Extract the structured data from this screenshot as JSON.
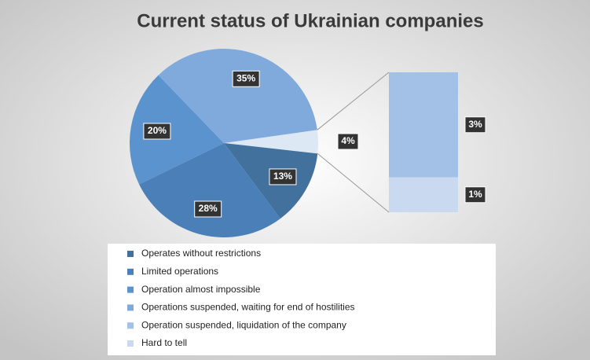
{
  "chart_data": {
    "type": "pie_of_bar",
    "title": "Current status of Ukrainian companies",
    "slices": [
      {
        "name": "Operates without restrictions",
        "value": 13,
        "label": "13%",
        "color": "#41719c"
      },
      {
        "name": "Limited operations",
        "value": 28,
        "label": "28%",
        "color": "#4a7fb8"
      },
      {
        "name": "Operation almost impossible",
        "value": 20,
        "label": "20%",
        "color": "#5b93cf"
      },
      {
        "name": "Operations suspended, waiting for end of hostilities",
        "value": 35,
        "label": "35%",
        "color": "#80a9dc"
      }
    ],
    "bar_slices": [
      {
        "name": "Operation suspended, liquidation of the company",
        "value": 3,
        "label": "3%",
        "color": "#a3c0e6"
      },
      {
        "name": "Hard to tell",
        "value": 1,
        "label": "1%",
        "color": "#c9daf0"
      }
    ],
    "other": {
      "value": 4,
      "label": "4%",
      "color": "#dde8f5"
    }
  }
}
